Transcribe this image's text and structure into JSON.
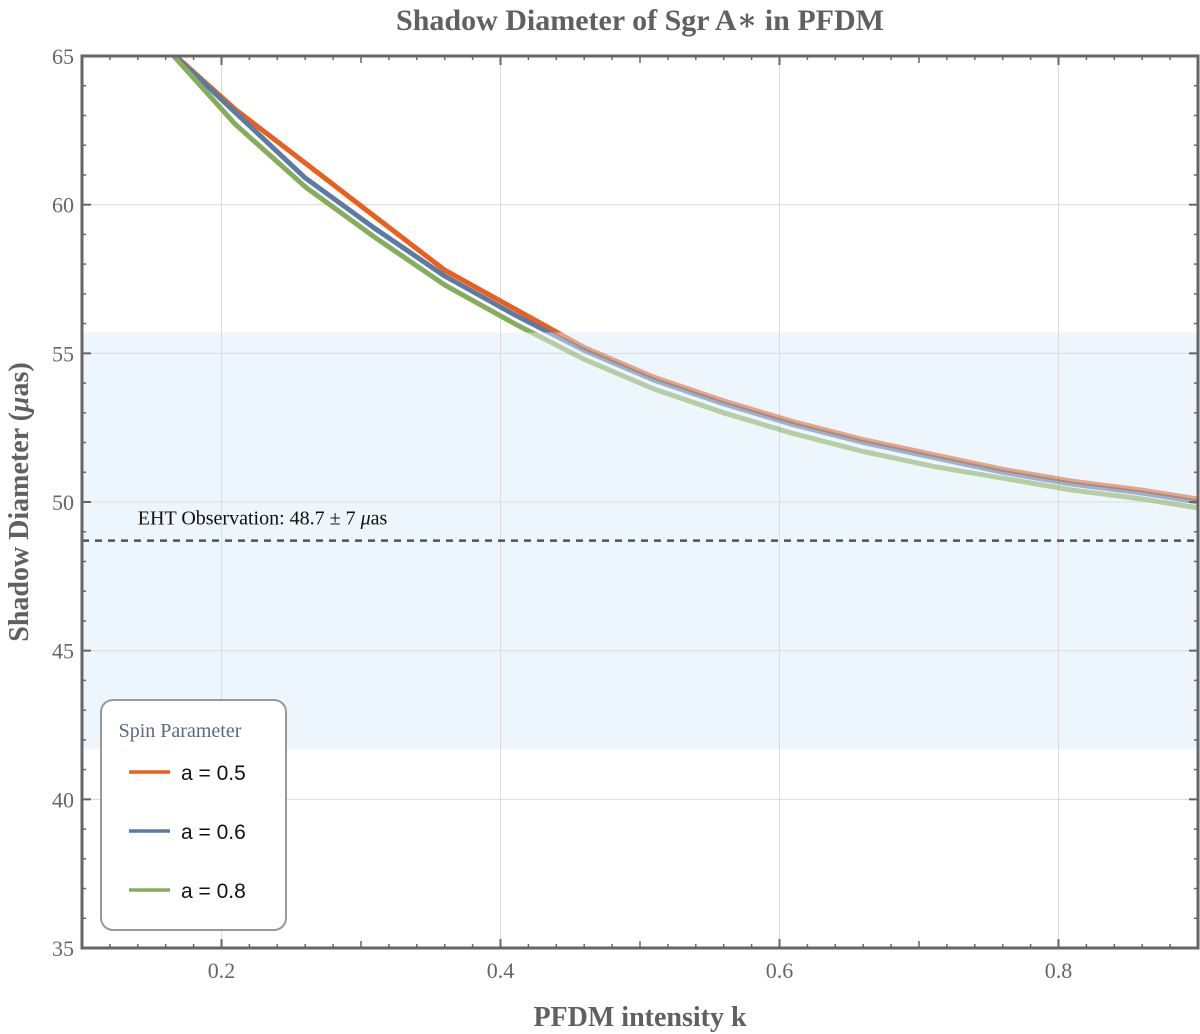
{
  "chart_data": {
    "type": "line",
    "title": "Shadow Diameter of Sgr A∗ in PFDM",
    "xlabel": "PFDM intensity k",
    "ylabel_main": "Shadow Diameter (",
    "ylabel_mu": "μ",
    "ylabel_end": "as)",
    "xlim": [
      0.1,
      0.9
    ],
    "ylim": [
      35,
      65
    ],
    "xticks": [
      0.2,
      0.4,
      0.6,
      0.8
    ],
    "xtick_labels": [
      "0.2",
      "0.4",
      "0.6",
      "0.8"
    ],
    "yticks": [
      35,
      40,
      45,
      50,
      55,
      60,
      65
    ],
    "ytick_labels": [
      "35",
      "40",
      "45",
      "50",
      "55",
      "60",
      "65"
    ],
    "band": {
      "low": 41.7,
      "high": 55.7,
      "color": "#eef6fd"
    },
    "observation": {
      "value": 48.7,
      "label_prefix": "EHT Observation: 48.7 ± 7 ",
      "label_mu": "μ",
      "label_suffix": "as"
    },
    "legend": {
      "title": "Spin Parameter",
      "position": "bottom-left"
    },
    "series": [
      {
        "name": "a = 0.5",
        "color": "#e8601c",
        "x": [
          0.16,
          0.21,
          0.26,
          0.31,
          0.36,
          0.41,
          0.46,
          0.51,
          0.56,
          0.61,
          0.66,
          0.71,
          0.76,
          0.81,
          0.86,
          0.9
        ],
        "y": [
          65.3,
          63.2,
          61.4,
          59.6,
          57.8,
          56.5,
          55.2,
          54.2,
          53.4,
          52.7,
          52.1,
          51.6,
          51.1,
          50.7,
          50.4,
          50.1
        ]
      },
      {
        "name": "a = 0.6",
        "color": "#5b7ba6",
        "x": [
          0.16,
          0.21,
          0.26,
          0.31,
          0.36,
          0.41,
          0.46,
          0.51,
          0.56,
          0.61,
          0.66,
          0.71,
          0.76,
          0.81,
          0.86,
          0.9
        ],
        "y": [
          65.3,
          63.1,
          60.9,
          59.2,
          57.6,
          56.3,
          55.1,
          54.1,
          53.3,
          52.6,
          52.0,
          51.5,
          51.0,
          50.6,
          50.3,
          50.0
        ]
      },
      {
        "name": "a = 0.8",
        "color": "#86ad5a",
        "x": [
          0.16,
          0.21,
          0.26,
          0.31,
          0.36,
          0.41,
          0.46,
          0.51,
          0.56,
          0.61,
          0.66,
          0.71,
          0.76,
          0.81,
          0.86,
          0.9
        ],
        "y": [
          65.3,
          62.7,
          60.6,
          58.9,
          57.3,
          56.0,
          54.8,
          53.8,
          53.0,
          52.3,
          51.7,
          51.2,
          50.8,
          50.4,
          50.1,
          49.8
        ]
      }
    ]
  }
}
